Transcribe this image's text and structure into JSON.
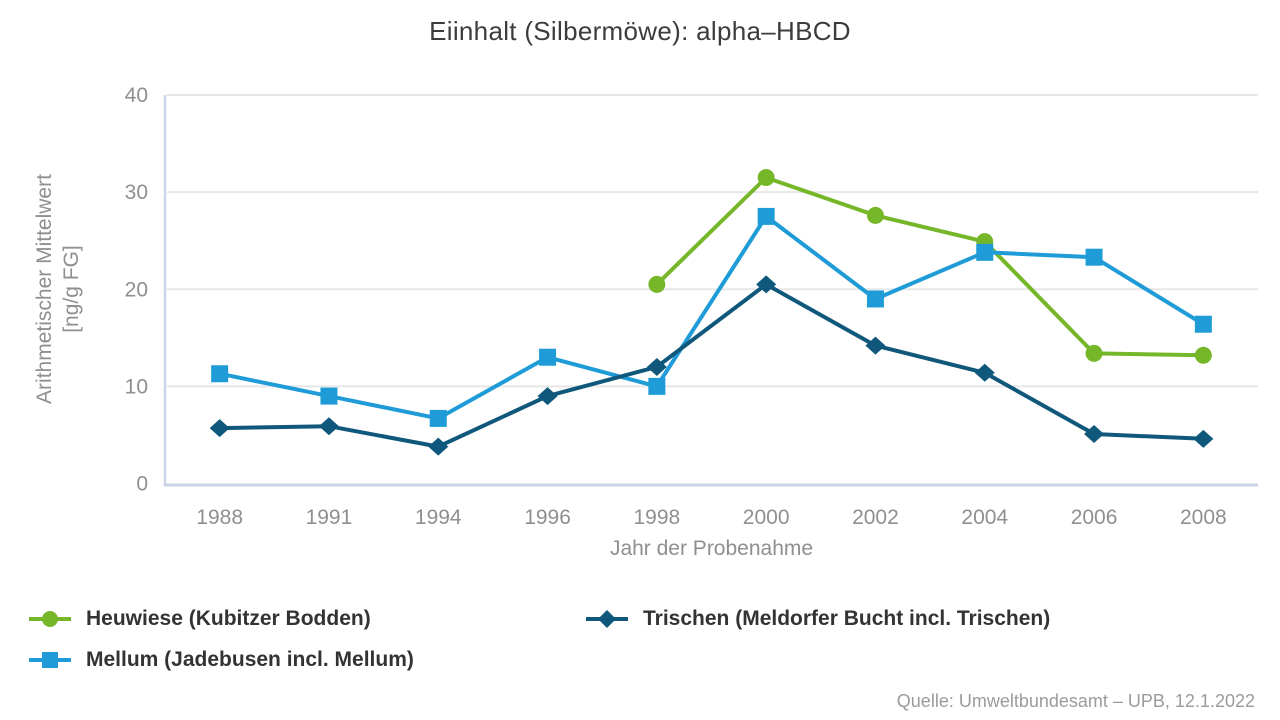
{
  "chart_data": {
    "type": "line",
    "title": "Eiinhalt (Silbermöwe): alpha–HBCD",
    "xlabel": "Jahr der Probenahme",
    "ylabel": "Arithmetischer Mittelwert [ng/g FG]",
    "ylabel_lines": [
      "Arithmetischer Mittelwert",
      "[ng/g FG]"
    ],
    "categories": [
      "1988",
      "1991",
      "1994",
      "1996",
      "1998",
      "2000",
      "2002",
      "2004",
      "2006",
      "2008"
    ],
    "ylim": [
      0,
      40
    ],
    "yticks": [
      0,
      10,
      20,
      30,
      40
    ],
    "grid": true,
    "legend_position": "bottom",
    "series": [
      {
        "id": "heuwiese",
        "name": "Heuwiese (Kubitzer Bodden)",
        "marker": "circle",
        "color": "#76b72a",
        "values": [
          null,
          null,
          null,
          null,
          20.5,
          31.5,
          27.6,
          24.9,
          13.4,
          13.2
        ]
      },
      {
        "id": "mellum",
        "name": "Mellum (Jadebusen incl. Mellum)",
        "marker": "square",
        "color": "#1f9cd7",
        "values": [
          11.3,
          9.0,
          6.7,
          13.0,
          10.0,
          27.5,
          19.0,
          23.8,
          23.3,
          16.4
        ]
      },
      {
        "id": "trischen",
        "name": "Trischen (Meldorfer Bucht incl. Trischen)",
        "marker": "diamond",
        "color": "#0f587c",
        "values": [
          5.7,
          5.9,
          3.8,
          9.0,
          12.0,
          20.5,
          14.2,
          11.4,
          5.1,
          4.6
        ]
      }
    ],
    "style": {
      "title_color": "#3c3c3c",
      "tick_color": "#8f8f8f",
      "legend_color": "#333333",
      "source_color": "#9b9b9b",
      "axis_line_color": "#c9d4e8",
      "grid_color": "#e7e7e7"
    }
  },
  "source_note": "Quelle: Umweltbundesamt – UPB, 12.1.2022"
}
